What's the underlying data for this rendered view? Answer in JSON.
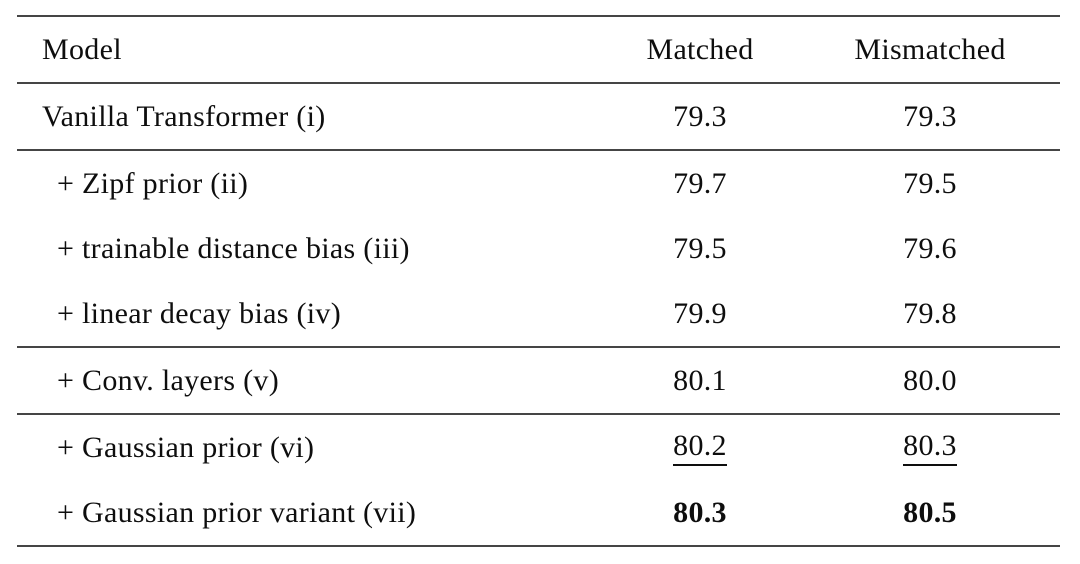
{
  "table": {
    "header": {
      "model": "Model",
      "matched": "Matched",
      "mismatched": "Mismatched"
    },
    "groups": [
      {
        "rows": [
          {
            "model": "Vanilla Transformer (i)",
            "matched": "79.3",
            "mismatched": "79.3",
            "indent": false,
            "style": "normal"
          }
        ]
      },
      {
        "rows": [
          {
            "model": "+ Zipf prior (ii)",
            "matched": "79.7",
            "mismatched": "79.5",
            "indent": true,
            "style": "normal"
          },
          {
            "model": "+ trainable distance bias (iii)",
            "matched": "79.5",
            "mismatched": "79.6",
            "indent": true,
            "style": "normal"
          },
          {
            "model": "+ linear decay bias (iv)",
            "matched": "79.9",
            "mismatched": "79.8",
            "indent": true,
            "style": "normal"
          }
        ]
      },
      {
        "rows": [
          {
            "model": "+ Conv. layers (v)",
            "matched": "80.1",
            "mismatched": "80.0",
            "indent": true,
            "style": "normal"
          }
        ]
      },
      {
        "rows": [
          {
            "model": "+ Gaussian prior (vi)",
            "matched": "80.2",
            "mismatched": "80.3",
            "indent": true,
            "style": "underline"
          },
          {
            "model": "+ Gaussian prior variant (vii)",
            "matched": "80.3",
            "mismatched": "80.5",
            "indent": true,
            "style": "bold"
          }
        ]
      }
    ],
    "colors": {
      "text": "#0e0e0e",
      "rule": "#454545",
      "background": "#ffffff"
    }
  },
  "chart_data": {
    "type": "table",
    "columns": [
      "Model",
      "Matched",
      "Mismatched"
    ],
    "rows": [
      [
        "Vanilla Transformer (i)",
        79.3,
        79.3
      ],
      [
        "+ Zipf prior (ii)",
        79.7,
        79.5
      ],
      [
        "+ trainable distance bias (iii)",
        79.5,
        79.6
      ],
      [
        "+ linear decay bias (iv)",
        79.9,
        79.8
      ],
      [
        "+ Conv. layers (v)",
        80.1,
        80.0
      ],
      [
        "+ Gaussian prior (vi)",
        80.2,
        80.3
      ],
      [
        "+ Gaussian prior variant (vii)",
        80.3,
        80.5
      ]
    ],
    "annotations": {
      "underlined_cells": [
        [
          "+ Gaussian prior (vi)",
          "Matched"
        ],
        [
          "+ Gaussian prior (vi)",
          "Mismatched"
        ]
      ],
      "bold_cells": [
        [
          "+ Gaussian prior variant (vii)",
          "Matched"
        ],
        [
          "+ Gaussian prior variant (vii)",
          "Mismatched"
        ]
      ]
    }
  }
}
